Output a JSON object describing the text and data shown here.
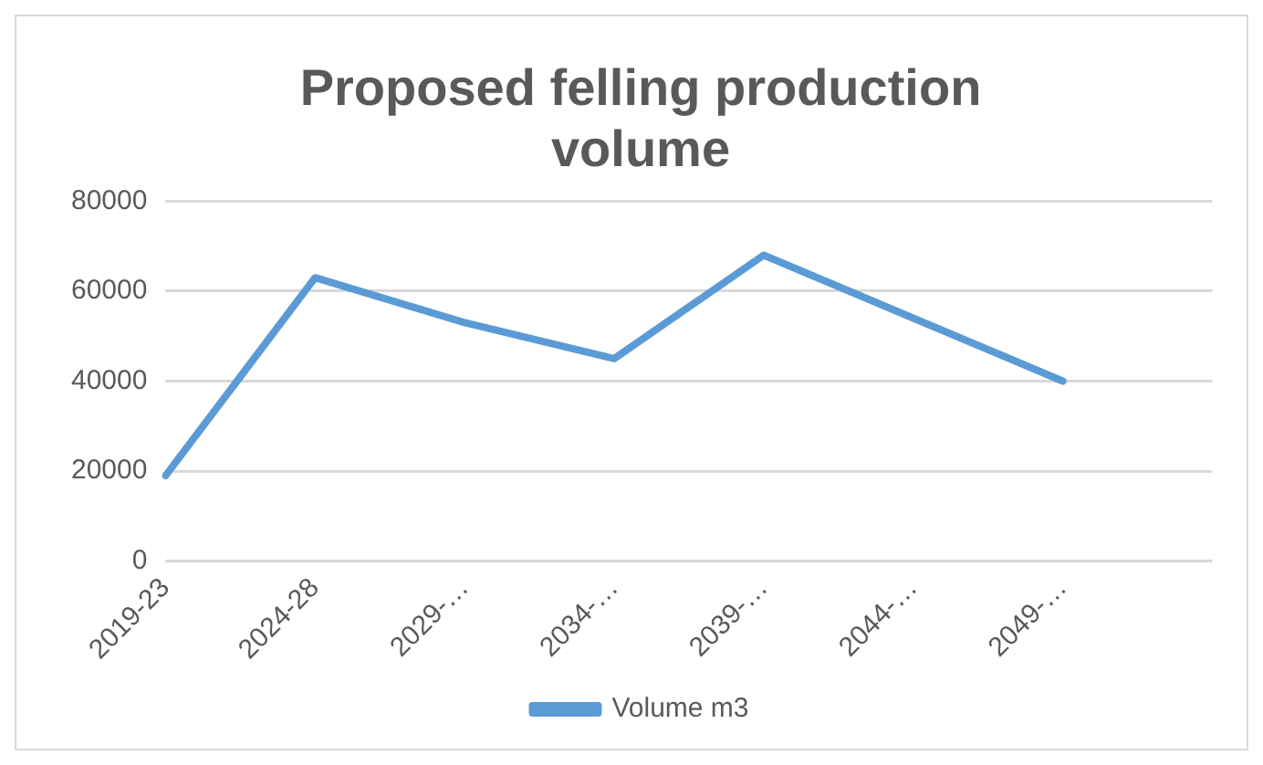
{
  "chart_data": {
    "type": "line",
    "title": [
      "Proposed felling production",
      "volume"
    ],
    "categories": [
      "2019-23",
      "2024-28",
      "2029-…",
      "2034-…",
      "2039-…",
      "2044-…",
      "2049-…",
      null
    ],
    "series": [
      {
        "name": "Volume m3",
        "color": "#5b9bd5",
        "values": [
          19000,
          63000,
          53000,
          45000,
          68000,
          54000,
          40000,
          null
        ]
      }
    ],
    "ylim": [
      0,
      80000
    ],
    "yticks": [
      0,
      20000,
      40000,
      60000,
      80000
    ],
    "grid": "y",
    "legend": "bottom",
    "marker": "none"
  }
}
